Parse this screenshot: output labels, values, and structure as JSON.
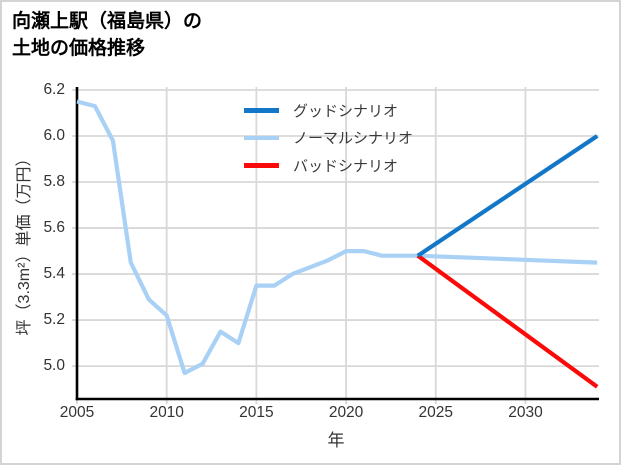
{
  "title": {
    "line1": "向瀬上駅（福島県）の",
    "line2": "土地の価格推移"
  },
  "colors": {
    "good": "#1277c9",
    "normal": "#a8d1f5",
    "bad": "#fa0a08",
    "grid": "#d8d8d8",
    "axis": "#000000",
    "border": "#d4d4d4",
    "text": "#3a3a3a"
  },
  "chart_data": {
    "type": "line",
    "title": "向瀬上駅（福島県）の土地の価格推移",
    "xlabel": "年",
    "ylabel": "坪（3.3m²）単価（万円）",
    "xlim": [
      2005,
      2034.1
    ],
    "ylim": [
      4.857,
      6.213
    ],
    "grid": true,
    "legend_position": "upper center",
    "x_ticks": [
      2005,
      2010,
      2015,
      2020,
      2025,
      2030
    ],
    "x_tick_labels": [
      "2005",
      "2010",
      "2015",
      "2020",
      "2025",
      "2030"
    ],
    "y_ticks": [
      5.0,
      5.2,
      5.4,
      5.6,
      5.8,
      6.0,
      6.2
    ],
    "y_tick_labels": [
      "5.0",
      "5.2",
      "5.4",
      "5.6",
      "5.8",
      "6.0",
      "6.2"
    ],
    "series": [
      {
        "name": "グッドシナリオ",
        "color": "#1277c9",
        "x": [
          2024,
          2034
        ],
        "y": [
          5.48,
          6.0
        ]
      },
      {
        "name": "ノーマルシナリオ",
        "color": "#a8d1f5",
        "x": [
          2005,
          2006,
          2007,
          2008,
          2009,
          2010,
          2011,
          2012,
          2013,
          2014,
          2015,
          2016,
          2017,
          2018,
          2019,
          2020,
          2021,
          2022,
          2023,
          2024,
          2034
        ],
        "y": [
          6.15,
          6.13,
          5.98,
          5.45,
          5.29,
          5.22,
          4.97,
          5.01,
          5.15,
          5.1,
          5.35,
          5.35,
          5.4,
          5.43,
          5.46,
          5.5,
          5.5,
          5.48,
          5.48,
          5.48,
          5.45
        ]
      },
      {
        "name": "バッドシナリオ",
        "color": "#fa0a08",
        "x": [
          2024,
          2034
        ],
        "y": [
          5.48,
          4.91
        ]
      }
    ]
  }
}
